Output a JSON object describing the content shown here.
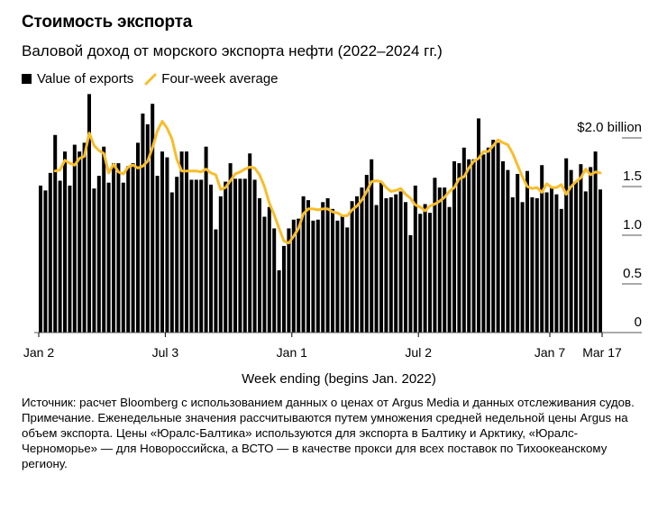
{
  "header": {
    "title": "Стоимость экспорта",
    "subtitle": "Валовой доход от морского экспорта нефти (2022–2024 гг.)"
  },
  "legend": {
    "bars_label": "Value of exports",
    "line_label": "Four-week average"
  },
  "colors": {
    "bars": "#000000",
    "average": "#f8bd2b",
    "grid": "#555555"
  },
  "footer": {
    "source": "Источник: расчет Bloomberg с использованием данных о ценах от Argus Media и данных отслеживания судов.",
    "note": "Примечание. Еженедельные значения рассчитываются путем умножения средней недельной цены Argus на объем экспорта. Цены «Юралс-Балтика» используются для экспорта в Балтику и Арктику, «Юралс-Черноморье» — для Новороссийска, а ВСТО — в качестве прокси для всех поставок по Тихоокеанскому региону."
  },
  "chart_data": {
    "type": "bar",
    "title": "Стоимость экспорта",
    "subtitle": "Валовой доход от морского экспорта нефти (2022–2024 гг.)",
    "xlabel": "Week ending (begins Jan. 2022)",
    "ylabel": "",
    "ylim": [
      0,
      2.5
    ],
    "yticks": [
      {
        "value": 0,
        "label": "0"
      },
      {
        "value": 0.5,
        "label": "0.5"
      },
      {
        "value": 1.0,
        "label": "1.0"
      },
      {
        "value": 1.5,
        "label": "1.5"
      },
      {
        "value": 2.0,
        "label": "$2.0 billion"
      }
    ],
    "xticks": [
      {
        "index": 0,
        "label": "Jan 2"
      },
      {
        "index": 26,
        "label": "Jul 3"
      },
      {
        "index": 52,
        "label": "Jan 1"
      },
      {
        "index": 78,
        "label": "Jul 2"
      },
      {
        "index": 105,
        "label": "Jan 7"
      },
      {
        "index": 115,
        "label": "Mar 17"
      }
    ],
    "grid": false,
    "legend_position": "top-left",
    "series": [
      {
        "name": "Value of exports",
        "kind": "bar",
        "unit": "USD billion",
        "values": [
          1.51,
          1.46,
          1.64,
          2.03,
          1.56,
          1.86,
          1.51,
          1.93,
          1.86,
          1.95,
          2.45,
          1.48,
          1.61,
          1.91,
          1.54,
          1.74,
          1.74,
          1.54,
          1.71,
          1.74,
          1.95,
          2.25,
          2.14,
          2.35,
          1.61,
          1.86,
          1.8,
          1.44,
          1.6,
          1.86,
          1.86,
          1.57,
          1.57,
          1.57,
          1.91,
          1.52,
          1.06,
          1.4,
          1.55,
          1.74,
          1.58,
          1.58,
          1.58,
          1.84,
          1.57,
          1.38,
          1.19,
          1.29,
          1.07,
          0.64,
          0.89,
          1.07,
          1.16,
          1.17,
          1.4,
          1.36,
          1.15,
          1.16,
          1.34,
          1.38,
          1.27,
          1.15,
          1.21,
          1.08,
          1.35,
          1.4,
          1.49,
          1.62,
          1.78,
          1.31,
          1.54,
          1.38,
          1.39,
          1.42,
          1.45,
          1.34,
          1.0,
          1.51,
          1.22,
          1.32,
          1.23,
          1.59,
          1.49,
          1.49,
          1.29,
          1.76,
          1.74,
          1.9,
          1.78,
          1.78,
          2.2,
          1.83,
          1.9,
          1.98,
          1.95,
          1.76,
          1.67,
          1.39,
          1.63,
          1.34,
          1.66,
          1.39,
          1.38,
          1.72,
          1.44,
          1.5,
          1.42,
          1.27,
          1.79,
          1.67,
          1.55,
          1.73,
          1.45,
          1.7,
          1.86,
          1.47
        ]
      },
      {
        "name": "Four-week average",
        "kind": "line",
        "unit": "USD billion",
        "start_index": 3,
        "values": [
          1.66,
          1.67,
          1.77,
          1.74,
          1.72,
          1.79,
          1.81,
          2.05,
          1.92,
          1.87,
          1.84,
          1.64,
          1.73,
          1.65,
          1.63,
          1.7,
          1.72,
          1.69,
          1.71,
          1.76,
          1.9,
          2.07,
          2.17,
          2.1,
          1.99,
          1.78,
          1.66,
          1.66,
          1.66,
          1.66,
          1.65,
          1.68,
          1.64,
          1.62,
          1.47,
          1.49,
          1.56,
          1.63,
          1.65,
          1.68,
          1.7,
          1.69,
          1.62,
          1.5,
          1.33,
          1.21,
          1.07,
          0.94,
          0.92,
          0.99,
          1.07,
          1.22,
          1.27,
          1.27,
          1.26,
          1.27,
          1.27,
          1.24,
          1.23,
          1.2,
          1.2,
          1.26,
          1.3,
          1.36,
          1.45,
          1.55,
          1.56,
          1.55,
          1.49,
          1.45,
          1.46,
          1.48,
          1.42,
          1.38,
          1.31,
          1.29,
          1.25,
          1.3,
          1.32,
          1.35,
          1.39,
          1.45,
          1.49,
          1.58,
          1.6,
          1.69,
          1.76,
          1.79,
          1.86,
          1.86,
          1.92,
          1.98,
          1.95,
          1.93,
          1.84,
          1.72,
          1.6,
          1.5,
          1.48,
          1.49,
          1.44,
          1.53,
          1.49,
          1.49,
          1.52,
          1.42,
          1.5,
          1.55,
          1.59,
          1.68,
          1.62,
          1.65,
          1.64
        ]
      }
    ]
  }
}
